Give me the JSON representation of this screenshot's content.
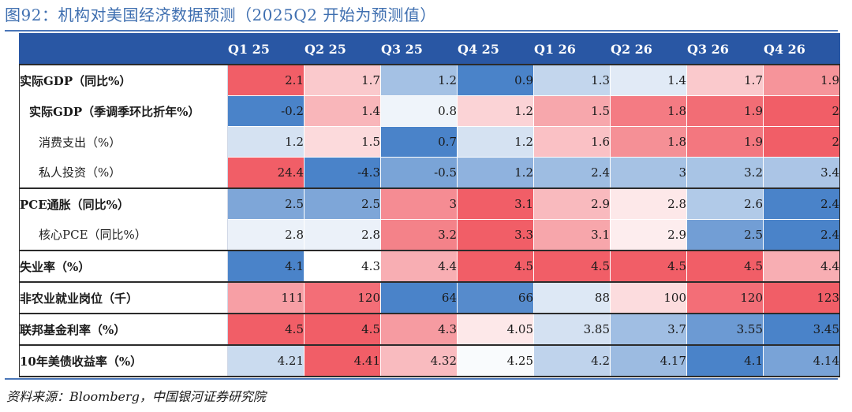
{
  "title": "图92：机构对美国经济数据预测（2025Q2 开始为预测值）",
  "source": "资料来源：Bloomberg，中国银河证券研究院",
  "colors": {
    "header_bg": "#2957a4",
    "high": "#f0505a",
    "mid": "#ffffff",
    "low": "#3a78c4"
  },
  "chart_data": {
    "type": "table",
    "title": "机构对美国经济数据预测（2025Q2 开始为预测值）",
    "columns": [
      "Q1 25",
      "Q2 25",
      "Q3 25",
      "Q4 25",
      "Q1 26",
      "Q2 26",
      "Q3 26",
      "Q4 26"
    ],
    "rows": [
      {
        "label": "实际GDP（同比%）",
        "level": "top",
        "group_start": true,
        "values": [
          "2.1",
          "1.7",
          "1.2",
          "0.9",
          "1.3",
          "1.4",
          "1.7",
          "1.9"
        ]
      },
      {
        "label": "实际GDP（季调季环比折年%）",
        "level": "sub2",
        "group_start": false,
        "values": [
          "-0.2",
          "1.4",
          "0.8",
          "1.2",
          "1.5",
          "1.8",
          "1.9",
          "2"
        ]
      },
      {
        "label": "消费支出（%）",
        "level": "sub",
        "group_start": false,
        "values": [
          "1.2",
          "1.5",
          "0.7",
          "1.2",
          "1.6",
          "1.8",
          "1.9",
          "2"
        ]
      },
      {
        "label": "私人投资（%）",
        "level": "sub",
        "group_start": false,
        "values": [
          "24.4",
          "-4.3",
          "-0.5",
          "1.2",
          "2.4",
          "3",
          "3.2",
          "3.4"
        ]
      },
      {
        "label": "PCE通胀（同比%）",
        "level": "top",
        "group_start": true,
        "values": [
          "2.5",
          "2.5",
          "3",
          "3.1",
          "2.9",
          "2.8",
          "2.6",
          "2.4"
        ]
      },
      {
        "label": "核心PCE（同比%）",
        "level": "sub",
        "group_start": false,
        "values": [
          "2.8",
          "2.8",
          "3.2",
          "3.3",
          "3.1",
          "2.9",
          "2.5",
          "2.4"
        ]
      },
      {
        "label": "失业率（%）",
        "level": "top",
        "group_start": true,
        "values": [
          "4.1",
          "4.3",
          "4.4",
          "4.5",
          "4.5",
          "4.5",
          "4.5",
          "4.4"
        ]
      },
      {
        "label": "非农业就业岗位（千）",
        "level": "top",
        "group_start": true,
        "values": [
          "111",
          "120",
          "64",
          "66",
          "88",
          "100",
          "120",
          "123"
        ]
      },
      {
        "label": "联邦基金利率（%）",
        "level": "top",
        "group_start": true,
        "values": [
          "4.5",
          "4.5",
          "4.3",
          "4.05",
          "3.85",
          "3.7",
          "3.55",
          "3.45"
        ]
      },
      {
        "label": "10年美债收益率（%）",
        "level": "top",
        "group_start": true,
        "values": [
          "4.21",
          "4.41",
          "4.32",
          "4.25",
          "4.2",
          "4.17",
          "4.1",
          "4.14"
        ]
      }
    ]
  }
}
